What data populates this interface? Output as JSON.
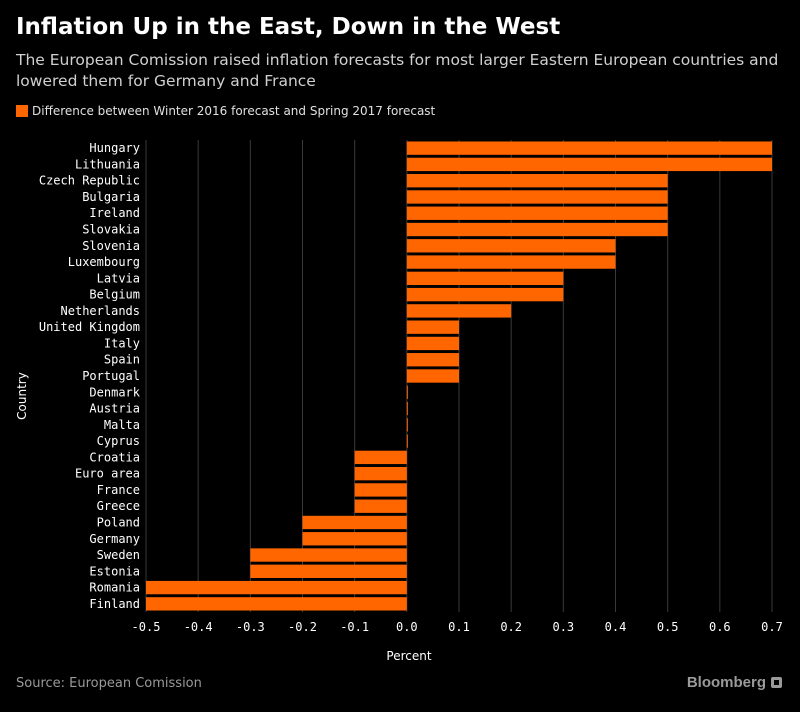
{
  "chart_data": {
    "type": "bar",
    "orientation": "horizontal",
    "title": "Inflation Up in the East, Down in the West",
    "subtitle": "The European Comission raised inflation forecasts for most larger Eastern European countries and lowered them for Germany and France",
    "legend": [
      "Difference between Winter 2016 forecast and Spring 2017 forecast"
    ],
    "xlabel": "Percent",
    "ylabel": "Country",
    "xlim": [
      -0.5,
      0.7
    ],
    "xticks": [
      "-0.5",
      "-0.4",
      "-0.3",
      "-0.2",
      "-0.1",
      "0.0",
      "0.1",
      "0.2",
      "0.3",
      "0.4",
      "0.5",
      "0.6",
      "0.7"
    ],
    "categories": [
      "Hungary",
      "Lithuania",
      "Czech Republic",
      "Bulgaria",
      "Ireland",
      "Slovakia",
      "Slovenia",
      "Luxembourg",
      "Latvia",
      "Belgium",
      "Netherlands",
      "United Kingdom",
      "Italy",
      "Spain",
      "Portugal",
      "Denmark",
      "Austria",
      "Malta",
      "Cyprus",
      "Croatia",
      "Euro area",
      "France",
      "Greece",
      "Poland",
      "Germany",
      "Sweden",
      "Estonia",
      "Romania",
      "Finland"
    ],
    "values": [
      0.7,
      0.7,
      0.5,
      0.5,
      0.5,
      0.5,
      0.4,
      0.4,
      0.3,
      0.3,
      0.2,
      0.1,
      0.1,
      0.1,
      0.1,
      0.0,
      0.0,
      0.0,
      0.0,
      -0.1,
      -0.1,
      -0.1,
      -0.1,
      -0.2,
      -0.2,
      -0.3,
      -0.3,
      -0.5,
      -0.5
    ],
    "grid": true,
    "bar_color": "#ff6600"
  },
  "footer": {
    "source": "Source: European Comission",
    "brand": "Bloomberg"
  }
}
